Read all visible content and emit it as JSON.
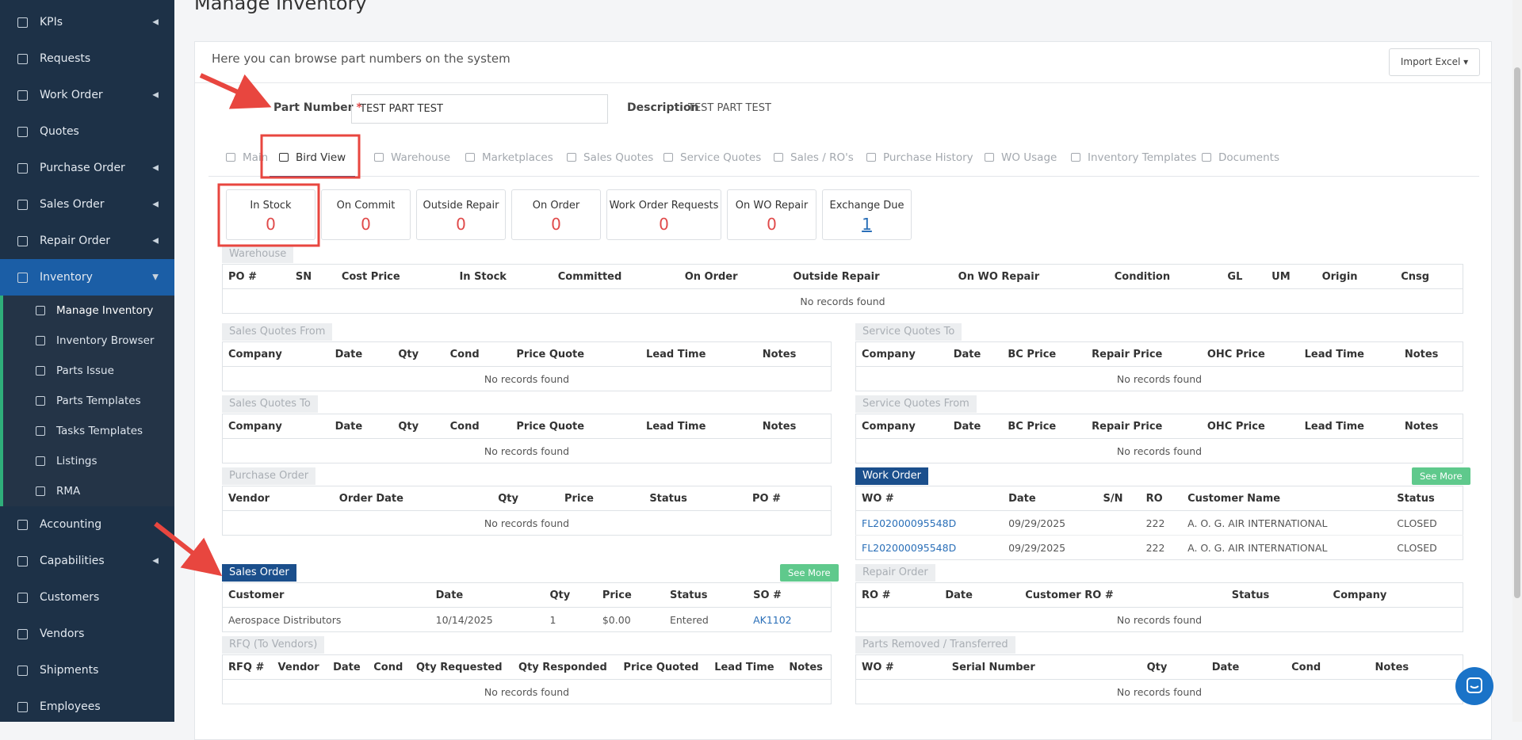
{
  "page_title": "Manage Inventory",
  "sidebar": {
    "items": [
      {
        "label": "KPIs",
        "submenu": true
      },
      {
        "label": "Requests"
      },
      {
        "label": "Work Order",
        "submenu": true
      },
      {
        "label": "Quotes"
      },
      {
        "label": "Purchase Order",
        "submenu": true
      },
      {
        "label": "Sales Order",
        "submenu": true
      },
      {
        "label": "Repair Order",
        "submenu": true
      },
      {
        "label": "Inventory",
        "submenu": true,
        "open": true,
        "children": [
          {
            "label": "Manage Inventory",
            "active": true
          },
          {
            "label": "Inventory Browser"
          },
          {
            "label": "Parts Issue"
          },
          {
            "label": "Parts Templates"
          },
          {
            "label": "Tasks Templates"
          },
          {
            "label": "Listings"
          },
          {
            "label": "RMA"
          }
        ]
      },
      {
        "label": "Accounting"
      },
      {
        "label": "Capabilities",
        "submenu": true
      },
      {
        "label": "Customers"
      },
      {
        "label": "Vendors"
      },
      {
        "label": "Shipments"
      },
      {
        "label": "Employees"
      }
    ]
  },
  "card": {
    "intro": "Here you can browse part numbers on the system",
    "import_button": "Import Excel",
    "part_number": {
      "label": "Part Number",
      "required": "*",
      "value": "TEST PART TEST"
    },
    "description": {
      "label": "Description",
      "value": "TEST PART TEST"
    },
    "tabs": [
      {
        "label": "Main"
      },
      {
        "label": "Bird View",
        "active": true
      },
      {
        "label": "Warehouse"
      },
      {
        "label": "Marketplaces"
      },
      {
        "label": "Sales Quotes"
      },
      {
        "label": "Service Quotes"
      },
      {
        "label": "Sales / RO's"
      },
      {
        "label": "Purchase History"
      },
      {
        "label": "WO Usage"
      },
      {
        "label": "Inventory Templates"
      },
      {
        "label": "Documents"
      }
    ],
    "stats": [
      {
        "label": "In Stock",
        "value": "0"
      },
      {
        "label": "On Commit",
        "value": "0"
      },
      {
        "label": "Outside Repair",
        "value": "0"
      },
      {
        "label": "On Order",
        "value": "0"
      },
      {
        "label": "Work Order Requests",
        "value": "0"
      },
      {
        "label": "On WO Repair",
        "value": "0"
      },
      {
        "label": "Exchange Due",
        "value": "1"
      }
    ],
    "warehouse": {
      "title": "Warehouse",
      "columns": [
        "PO #",
        "SN",
        "Cost Price",
        "In Stock",
        "Committed",
        "On Order",
        "Outside Repair",
        "On WO Repair",
        "Condition",
        "GL",
        "UM",
        "Origin",
        "Cnsg"
      ],
      "empty": "No records found"
    },
    "left": [
      {
        "title": "Sales Quotes From",
        "columns": [
          "Company",
          "Date",
          "Qty",
          "Cond",
          "Price Quote",
          "Lead Time",
          "Notes"
        ],
        "empty": "No records found"
      },
      {
        "title": "Sales Quotes To",
        "columns": [
          "Company",
          "Date",
          "Qty",
          "Cond",
          "Price Quote",
          "Lead Time",
          "Notes"
        ],
        "empty": "No records found"
      },
      {
        "title": "Purchase Order",
        "columns": [
          "Vendor",
          "Order Date",
          "Qty",
          "Price",
          "Status",
          "PO #"
        ],
        "empty": "No records found"
      },
      {
        "title": "Sales Order",
        "highlight": true,
        "see_more": "See More",
        "columns": [
          "Customer",
          "Date",
          "Qty",
          "Price",
          "Status",
          "SO #"
        ],
        "rows": [
          [
            "Aerospace Distributors",
            "10/14/2025",
            "1",
            "$0.00",
            "Entered",
            "AK1102"
          ]
        ]
      },
      {
        "title": "RFQ (To Vendors)",
        "columns": [
          "RFQ #",
          "Vendor",
          "Date",
          "Cond",
          "Qty Requested",
          "Qty Responded",
          "Price Quoted",
          "Lead Time",
          "Notes"
        ],
        "empty": "No records found"
      }
    ],
    "right": [
      {
        "title": "Service Quotes To",
        "columns": [
          "Company",
          "Date",
          "BC Price",
          "Repair Price",
          "OHC Price",
          "Lead Time",
          "Notes"
        ],
        "empty": "No records found"
      },
      {
        "title": "Service Quotes From",
        "columns": [
          "Company",
          "Date",
          "BC Price",
          "Repair Price",
          "OHC Price",
          "Lead Time",
          "Notes"
        ],
        "empty": "No records found"
      },
      {
        "title": "Work Order",
        "highlight": true,
        "see_more": "See More",
        "columns": [
          "WO #",
          "Date",
          "S/N",
          "RO",
          "Customer Name",
          "Status"
        ],
        "rows": [
          [
            "FL202000095548D",
            "09/29/2025",
            null,
            "222",
            "A. O. G. AIR INTERNATIONAL",
            "CLOSED"
          ],
          [
            "FL202000095548D",
            "09/29/2025",
            null,
            "222",
            "A. O. G. AIR INTERNATIONAL",
            "CLOSED"
          ]
        ]
      },
      {
        "title": "Repair Order",
        "columns": [
          "RO #",
          "Date",
          "Customer RO #",
          "Status",
          "Company"
        ],
        "empty": "No records found"
      },
      {
        "title": "Parts Removed / Transferred",
        "columns": [
          "WO #",
          "Serial Number",
          "Qty",
          "Date",
          "Cond",
          "Notes"
        ],
        "empty": "No records found"
      }
    ]
  }
}
